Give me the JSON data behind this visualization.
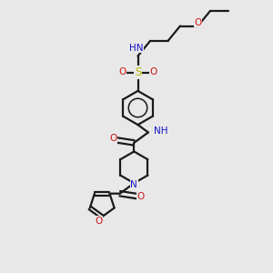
{
  "bg_color": "#e8e8e8",
  "bond_color": "#1a1a1a",
  "N_color": "#1414cc",
  "O_color": "#cc1414",
  "S_color": "#b8b800",
  "H_color": "#607070",
  "line_width": 1.6,
  "font_size": 7.5,
  "fig_size": [
    3.0,
    3.0
  ],
  "dpi": 100,
  "xlim": [
    0,
    10
  ],
  "ylim": [
    0,
    10
  ]
}
